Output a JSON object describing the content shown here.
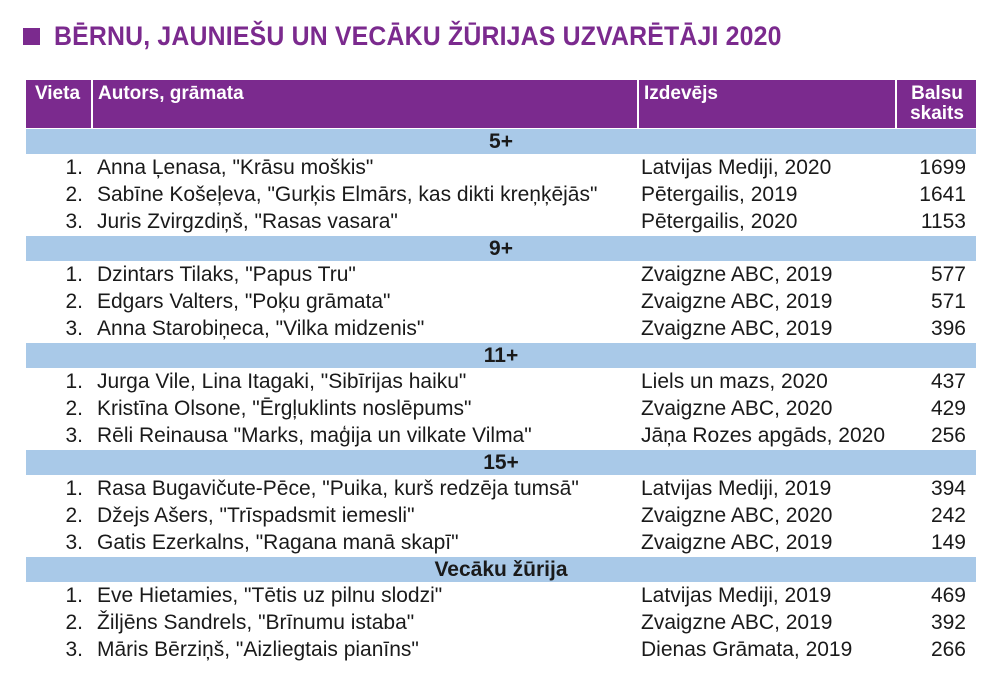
{
  "title": "BĒRNU, JAUNIEŠU UN VECĀKU ŽŪRIJAS UZVARĒTĀJI 2020",
  "headers": {
    "place": "Vieta",
    "author": "Autors, grāmata",
    "publisher": "Izdevējs",
    "votes_line1": "Balsu",
    "votes_line2": "skaits"
  },
  "sections": [
    {
      "label": "5+",
      "rows": [
        {
          "place": "1.",
          "author": "Anna Ļenasa, \"Krāsu moškis\"",
          "publisher": "Latvijas Mediji, 2020",
          "votes": "1699"
        },
        {
          "place": "2.",
          "author": "Sabīne Košeļeva, \"Gurķis Elmārs, kas dikti kreņķējās\"",
          "publisher": "Pētergailis, 2019",
          "votes": "1641"
        },
        {
          "place": "3.",
          "author": "Juris Zvirgzdiņš, \"Rasas vasara\"",
          "publisher": "Pētergailis, 2020",
          "votes": "1153"
        }
      ]
    },
    {
      "label": "9+",
      "rows": [
        {
          "place": "1.",
          "author": "Dzintars Tilaks, \"Papus Tru\"",
          "publisher": "Zvaigzne ABC, 2019",
          "votes": "577"
        },
        {
          "place": "2.",
          "author": "Edgars Valters, \"Poķu grāmata\"",
          "publisher": "Zvaigzne ABC, 2019",
          "votes": "571"
        },
        {
          "place": "3.",
          "author": "Anna Starobiņeca, \"Vilka midzenis\"",
          "publisher": "Zvaigzne ABC, 2019",
          "votes": "396"
        }
      ]
    },
    {
      "label": "11+",
      "rows": [
        {
          "place": "1.",
          "author": "Jurga Vile, Lina Itagaki, \"Sibīrijas haiku\"",
          "publisher": "Liels un mazs, 2020",
          "votes": "437"
        },
        {
          "place": "2.",
          "author": "Kristīna Olsone, \"Ērgļuklints noslēpums\"",
          "publisher": "Zvaigzne ABC, 2020",
          "votes": "429"
        },
        {
          "place": "3.",
          "author": "Rēli Reinausa \"Marks, maģija un vilkate Vilma\"",
          "publisher": "Jāņa Rozes apgāds, 2020",
          "votes": "256"
        }
      ]
    },
    {
      "label": "15+",
      "rows": [
        {
          "place": "1.",
          "author": "Rasa Bugavičute-Pēce, \"Puika, kurš redzēja tumsā\"",
          "publisher": "Latvijas Mediji, 2019",
          "votes": "394"
        },
        {
          "place": "2.",
          "author": "Džejs Ašers, \"Trīspadsmit iemesli\"",
          "publisher": "Zvaigzne ABC, 2020",
          "votes": "242"
        },
        {
          "place": "3.",
          "author": "Gatis Ezerkalns, \"Ragana manā skapī\"",
          "publisher": "Zvaigzne ABC, 2019",
          "votes": "149"
        }
      ]
    },
    {
      "label": "Vecāku žūrija",
      "rows": [
        {
          "place": "1.",
          "author": "Eve Hietamies, \"Tētis uz pilnu slodzi\"",
          "publisher": "Latvijas Mediji, 2019",
          "votes": "469"
        },
        {
          "place": "2.",
          "author": "Žiljēns Sandrels, \"Brīnumu istaba\"",
          "publisher": "Zvaigzne ABC, 2019",
          "votes": "392"
        },
        {
          "place": "3.",
          "author": "Māris Bērziņš, \"Aizliegtais pianīns\"",
          "publisher": "Dienas Grāmata, 2019",
          "votes": "266"
        }
      ]
    }
  ],
  "colors": {
    "accent": "#7b2a8e",
    "section_band": "#a9c9e8"
  }
}
